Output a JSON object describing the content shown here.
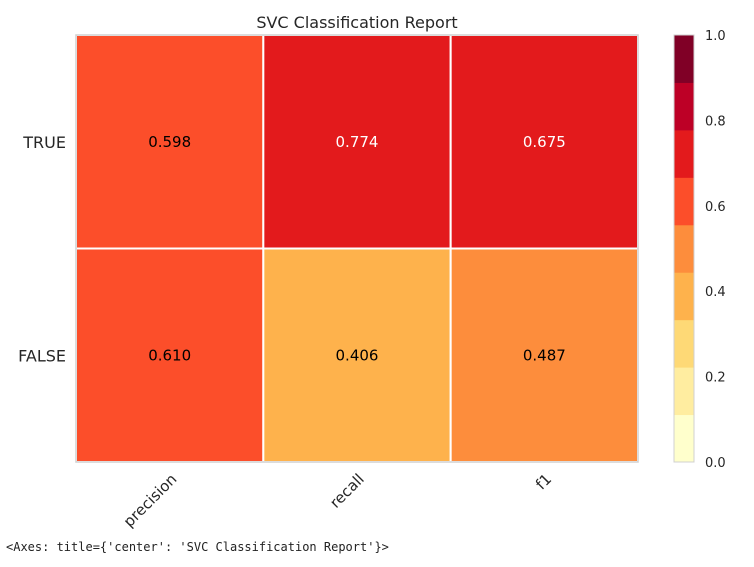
{
  "chart_data": {
    "type": "heatmap",
    "title": "SVC Classification Report",
    "x_categories": [
      "precision",
      "recall",
      "f1"
    ],
    "y_categories": [
      "TRUE",
      "FALSE"
    ],
    "values": [
      [
        0.598,
        0.774,
        0.675
      ],
      [
        0.61,
        0.406,
        0.487
      ]
    ],
    "value_labels": [
      [
        "0.598",
        "0.774",
        "0.675"
      ],
      [
        "0.610",
        "0.406",
        "0.487"
      ]
    ],
    "colorbar": {
      "range": [
        0.0,
        1.0
      ],
      "ticks": [
        "0.0",
        "0.2",
        "0.4",
        "0.6",
        "0.8",
        "1.0"
      ],
      "tick_values": [
        0.0,
        0.2,
        0.4,
        0.6,
        0.8,
        1.0
      ],
      "levels": [
        "#ffffcc",
        "#ffeda0",
        "#fed976",
        "#feb24c",
        "#fd8d3c",
        "#fc4e2a",
        "#e31a1c",
        "#bd0026",
        "#800026"
      ]
    }
  },
  "output_text": "<Axes: title={'center': 'SVC Classification Report'}>"
}
